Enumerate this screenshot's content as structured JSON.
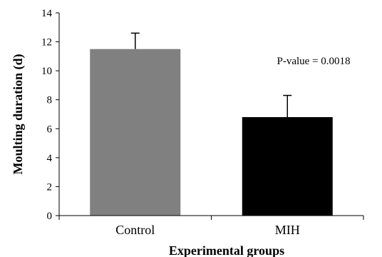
{
  "chart_data": {
    "type": "bar",
    "categories": [
      "Control",
      "MIH"
    ],
    "values": [
      11.5,
      6.8
    ],
    "error_bars": [
      1.1,
      1.5
    ],
    "bar_colors": [
      "#808080",
      "#000000"
    ],
    "xlabel": "Experimental groups",
    "ylabel": "Moulting duration (d)",
    "ylim": [
      0,
      14
    ],
    "yticks": [
      0,
      2,
      4,
      6,
      8,
      10,
      12,
      14
    ],
    "grid": false,
    "annotation": "P-value = 0.0018"
  }
}
